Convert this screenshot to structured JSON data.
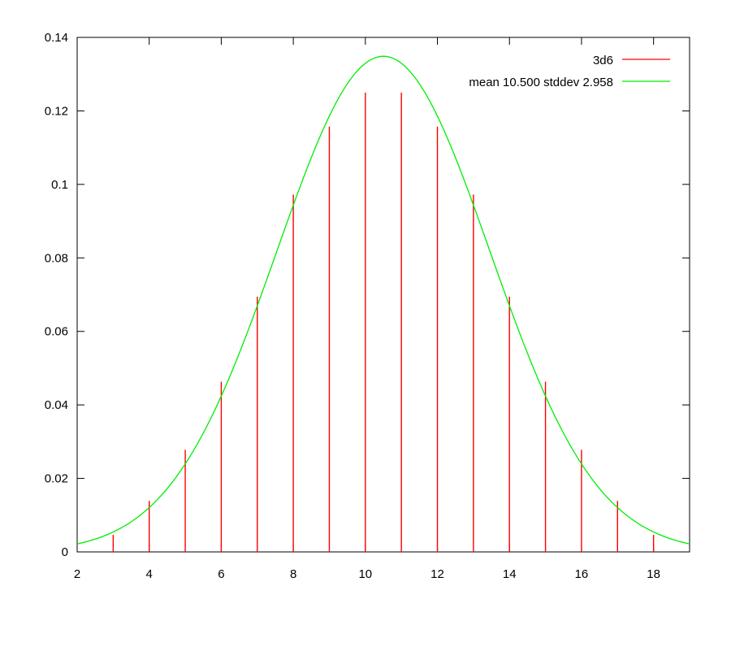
{
  "chart_data": {
    "type": "bar",
    "title": "",
    "xlabel": "",
    "ylabel": "",
    "xlim": [
      2,
      19
    ],
    "ylim": [
      0,
      0.14
    ],
    "x_ticks": [
      2,
      4,
      6,
      8,
      10,
      12,
      14,
      16,
      18
    ],
    "y_ticks": [
      0,
      0.02,
      0.04,
      0.06,
      0.08,
      0.1,
      0.12,
      0.14
    ],
    "x_tick_labels": [
      "2",
      "4",
      "6",
      "8",
      "10",
      "12",
      "14",
      "16",
      "18"
    ],
    "y_tick_labels": [
      "0",
      "0.02",
      "0.04",
      "0.06",
      "0.08",
      "0.1",
      "0.12",
      "0.14"
    ],
    "grid": false,
    "legend_position": "top-right",
    "series": [
      {
        "name": "3d6",
        "style": "impulses",
        "color": "#ff0000",
        "x": [
          3,
          4,
          5,
          6,
          7,
          8,
          9,
          10,
          11,
          12,
          13,
          14,
          15,
          16,
          17,
          18
        ],
        "values": [
          0.00463,
          0.01389,
          0.02778,
          0.0463,
          0.06944,
          0.09722,
          0.11574,
          0.125,
          0.125,
          0.11574,
          0.09722,
          0.06944,
          0.0463,
          0.02778,
          0.01389,
          0.00463
        ]
      },
      {
        "name": "mean 10.500 stddev 2.958",
        "style": "line",
        "color": "#00ee00",
        "mean": 10.5,
        "stddev": 2.958
      }
    ]
  }
}
